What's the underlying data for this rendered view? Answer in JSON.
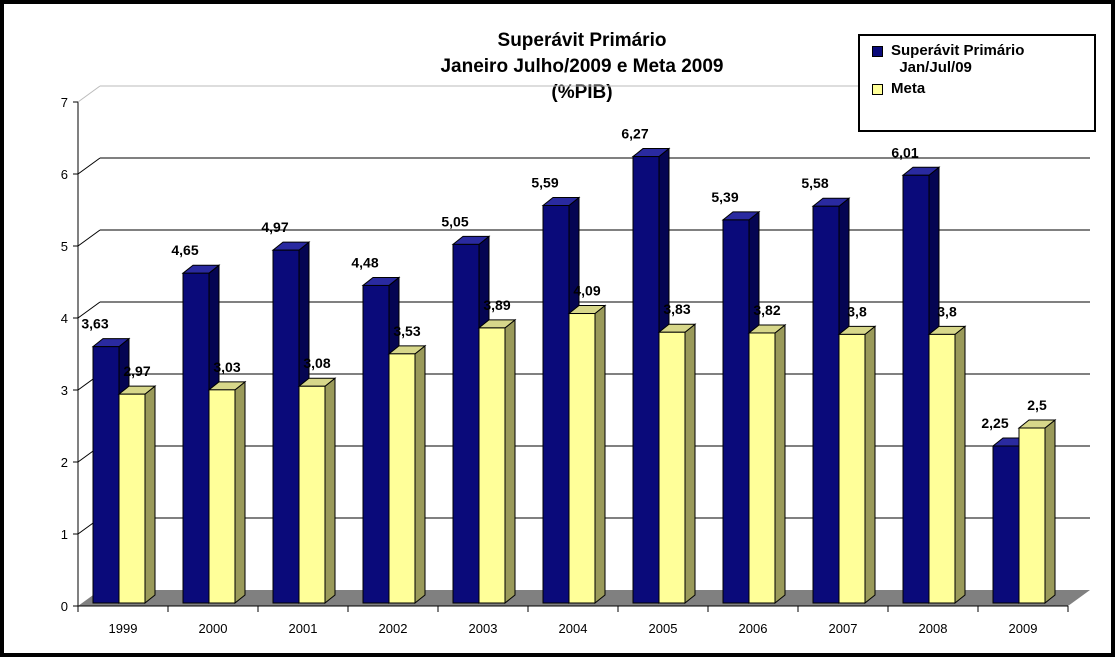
{
  "chart_data": {
    "type": "bar",
    "title": [
      "Superávit Primário",
      "Janeiro Julho/2009 e Meta 2009",
      "(%PIB)"
    ],
    "categories": [
      "1999",
      "2000",
      "2001",
      "2002",
      "2003",
      "2004",
      "2005",
      "2006",
      "2007",
      "2008",
      "2009"
    ],
    "series": [
      {
        "name": "Superávit Primário Jan/Jul/09",
        "color": "#0a0a7a",
        "values": [
          3.63,
          4.65,
          4.97,
          4.48,
          5.05,
          5.59,
          6.27,
          5.39,
          5.58,
          6.01,
          2.25
        ],
        "labels": [
          "3,63",
          "4,65",
          "4,97",
          "4,48",
          "5,05",
          "5,59",
          "6,27",
          "5,39",
          "5,58",
          "6,01",
          "2,25"
        ]
      },
      {
        "name": "Meta",
        "color": "#ffff99",
        "values": [
          2.97,
          3.03,
          3.08,
          3.53,
          3.89,
          4.09,
          3.83,
          3.82,
          3.8,
          3.8,
          2.5
        ],
        "labels": [
          "2,97",
          "3,03",
          "3,08",
          "3,53",
          "3,89",
          "4,09",
          "3,83",
          "3,82",
          "3,8",
          "3,8",
          "2,5"
        ]
      }
    ],
    "yticks": [
      "0",
      "1",
      "2",
      "3",
      "4",
      "5",
      "6",
      "7"
    ],
    "ylim": [
      0,
      7
    ],
    "grid": true,
    "legend_position": "top-right",
    "legend": [
      "Superávit Primário Jan/Jul/09",
      "Meta"
    ]
  }
}
